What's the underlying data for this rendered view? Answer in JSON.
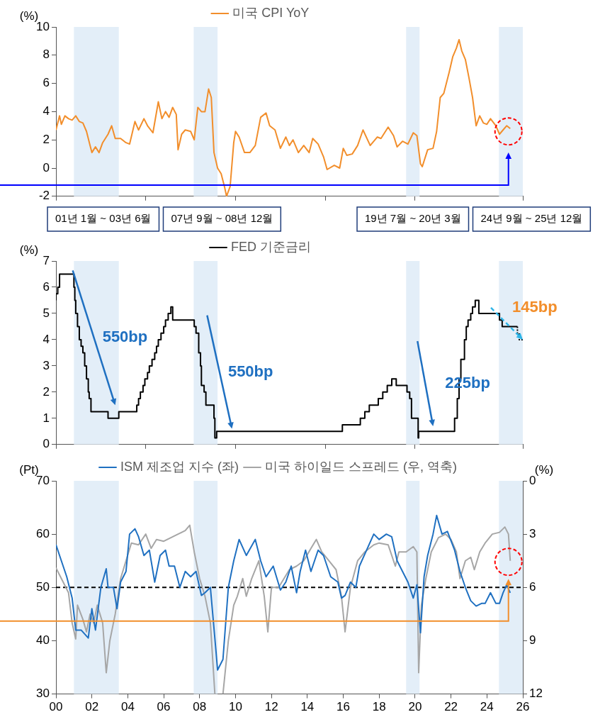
{
  "chart_data": [
    {
      "type": "line",
      "ylabel": "(%)",
      "legend": "top",
      "tick_labels": "y",
      "xlim": [
        2000,
        2026
      ],
      "ylim": [
        -2,
        10
      ],
      "yticks": [
        -2,
        0,
        2,
        4,
        6,
        8,
        10
      ],
      "series": [
        {
          "name": "미국 CPI YoY",
          "color": "#f28e2b",
          "x": [
            2000.0,
            2000.1,
            2000.2,
            2000.3,
            2000.5,
            2000.7,
            2000.9,
            2001.1,
            2001.3,
            2001.5,
            2001.7,
            2001.9,
            2002.0,
            2002.2,
            2002.4,
            2002.6,
            2002.9,
            2003.1,
            2003.3,
            2003.6,
            2003.9,
            2004.1,
            2004.4,
            2004.6,
            2004.9,
            2005.1,
            2005.4,
            2005.7,
            2005.9,
            2006.1,
            2006.3,
            2006.5,
            2006.7,
            2006.8,
            2007.0,
            2007.2,
            2007.5,
            2007.7,
            2007.9,
            2008.1,
            2008.3,
            2008.5,
            2008.65,
            2008.8,
            2009.0,
            2009.2,
            2009.4,
            2009.5,
            2009.7,
            2009.9,
            2010.0,
            2010.2,
            2010.5,
            2010.8,
            2011.1,
            2011.4,
            2011.7,
            2011.9,
            2012.2,
            2012.5,
            2012.8,
            2013.0,
            2013.2,
            2013.5,
            2013.8,
            2014.1,
            2014.3,
            2014.6,
            2014.9,
            2015.1,
            2015.5,
            2015.8,
            2016.0,
            2016.2,
            2016.5,
            2016.8,
            2017.1,
            2017.5,
            2017.9,
            2018.1,
            2018.5,
            2018.8,
            2019.0,
            2019.3,
            2019.6,
            2019.9,
            2020.1,
            2020.3,
            2020.4,
            2020.7,
            2021.0,
            2021.2,
            2021.4,
            2021.6,
            2021.9,
            2022.1,
            2022.3,
            2022.45,
            2022.6,
            2022.8,
            2023.0,
            2023.2,
            2023.4,
            2023.6,
            2023.8,
            2024.0,
            2024.2,
            2024.5,
            2024.7,
            2024.9,
            2025.1,
            2025.3
          ],
          "values": [
            2.7,
            3.2,
            3.7,
            3.1,
            3.7,
            3.5,
            3.4,
            3.7,
            3.3,
            3.2,
            2.6,
            1.6,
            1.1,
            1.5,
            1.1,
            1.8,
            2.4,
            3.0,
            2.1,
            2.1,
            1.8,
            1.7,
            3.3,
            2.7,
            3.5,
            3.0,
            2.5,
            4.7,
            3.5,
            4.0,
            3.6,
            4.3,
            3.8,
            1.3,
            2.4,
            2.7,
            2.6,
            2.0,
            4.3,
            4.0,
            4.0,
            5.6,
            5.0,
            1.1,
            0.0,
            -0.4,
            -1.4,
            -2.0,
            -1.3,
            1.8,
            2.6,
            2.2,
            1.1,
            1.1,
            1.6,
            3.6,
            3.9,
            3.0,
            2.7,
            1.4,
            2.2,
            1.6,
            2.0,
            1.1,
            1.6,
            1.1,
            2.1,
            1.7,
            0.8,
            -0.1,
            0.2,
            0.0,
            1.4,
            0.9,
            1.0,
            1.6,
            2.7,
            1.6,
            2.2,
            2.1,
            2.9,
            2.3,
            1.5,
            1.9,
            1.7,
            2.5,
            2.3,
            0.3,
            0.1,
            1.3,
            1.4,
            2.6,
            5.0,
            5.3,
            6.8,
            7.9,
            8.5,
            9.1,
            8.3,
            7.7,
            6.4,
            5.0,
            3.0,
            3.7,
            3.2,
            3.1,
            3.5,
            3.0,
            2.4,
            2.7,
            3.0,
            2.8
          ]
        }
      ],
      "bands": [
        {
          "axis": "x",
          "from": 2001.0,
          "to": 2003.5,
          "color": "#e3eef8"
        },
        {
          "axis": "x",
          "from": 2007.67,
          "to": 2009.0,
          "color": "#e3eef8"
        },
        {
          "axis": "x",
          "from": 2019.5,
          "to": 2020.25,
          "color": "#e3eef8"
        },
        {
          "axis": "x",
          "from": 2024.67,
          "to": 2026.0,
          "color": "#e3eef8"
        }
      ]
    },
    {
      "type": "step",
      "ylabel": "(%)",
      "legend": "top",
      "tick_labels": "y",
      "xlim": [
        2000,
        2026
      ],
      "ylim": [
        0,
        7
      ],
      "yticks": [
        0,
        1,
        2,
        3,
        4,
        5,
        6,
        7
      ],
      "series": [
        {
          "name": "FED 기준금리",
          "color": "#000000",
          "x": [
            2000.0,
            2000.1,
            2000.2,
            2000.4,
            2001.0,
            2001.05,
            2001.1,
            2001.2,
            2001.3,
            2001.4,
            2001.5,
            2001.6,
            2001.7,
            2001.8,
            2001.85,
            2001.95,
            2002.9,
            2003.5,
            2004.5,
            2004.6,
            2004.7,
            2004.85,
            2004.95,
            2005.1,
            2005.2,
            2005.35,
            2005.5,
            2005.6,
            2005.7,
            2005.85,
            2006.0,
            2006.1,
            2006.25,
            2006.4,
            2006.5,
            2007.7,
            2007.8,
            2007.95,
            2008.05,
            2008.1,
            2008.25,
            2008.35,
            2008.8,
            2008.85,
            2008.95,
            2015.95,
            2016.95,
            2017.2,
            2017.45,
            2017.95,
            2018.2,
            2018.45,
            2018.7,
            2018.95,
            2019.55,
            2019.7,
            2019.8,
            2020.17,
            2020.2,
            2022.2,
            2022.35,
            2022.45,
            2022.55,
            2022.75,
            2022.85,
            2022.95,
            2023.1,
            2023.2,
            2023.35,
            2023.55,
            2024.7,
            2024.85,
            2024.95,
            2025.7
          ],
          "values": [
            5.5,
            5.75,
            6.0,
            6.5,
            6.5,
            6.0,
            5.5,
            5.0,
            4.5,
            4.0,
            3.75,
            3.5,
            3.0,
            2.5,
            2.0,
            1.75,
            1.25,
            1.0,
            1.25,
            1.5,
            1.75,
            2.0,
            2.25,
            2.5,
            2.75,
            3.0,
            3.25,
            3.5,
            3.75,
            4.0,
            4.25,
            4.5,
            4.75,
            5.0,
            5.25,
            4.75,
            4.5,
            4.25,
            3.5,
            3.0,
            2.25,
            2.0,
            1.5,
            1.0,
            0.25,
            0.5,
            0.75,
            1.0,
            1.25,
            1.5,
            1.75,
            2.0,
            2.25,
            2.5,
            2.25,
            2.0,
            1.75,
            1.0,
            0.25,
            0.5,
            1.0,
            1.75,
            2.5,
            3.25,
            4.0,
            4.5,
            4.75,
            5.0,
            5.25,
            5.5,
            5.0,
            4.75,
            4.5,
            4.5
          ]
        },
        {
          "color": "#000000",
          "line_style": "dotted",
          "x": [
            2025.7,
            2025.8,
            2025.95,
            2026.0
          ],
          "values": [
            4.5,
            4.25,
            4.0,
            4.0
          ]
        }
      ],
      "bands": [
        {
          "axis": "x",
          "from": 2001.0,
          "to": 2003.5,
          "color": "#e3eef8"
        },
        {
          "axis": "x",
          "from": 2007.67,
          "to": 2009.0,
          "color": "#e3eef8"
        },
        {
          "axis": "x",
          "from": 2019.5,
          "to": 2020.25,
          "color": "#e3eef8"
        },
        {
          "axis": "x",
          "from": 2024.67,
          "to": 2026.0,
          "color": "#e3eef8"
        }
      ],
      "annotations": [
        "01년 1월 ~ 03년 6월",
        "07년 9월 ~ 08년 12월",
        "19년 7월 ~ 20년 3월",
        "24년 9월 ~ 25년 12월",
        "550bp",
        "550bp",
        "225bp",
        "145bp"
      ]
    },
    {
      "type": "line",
      "ylabel": "(Pt)",
      "y2label": "(%)",
      "legend": "top",
      "xlim": [
        2000,
        2026
      ],
      "xticks": [
        {
          "value": 2000,
          "label": "00"
        },
        {
          "value": 2002,
          "label": "02"
        },
        {
          "value": 2004,
          "label": "04"
        },
        {
          "value": 2006,
          "label": "06"
        },
        {
          "value": 2008,
          "label": "08"
        },
        {
          "value": 2010,
          "label": "10"
        },
        {
          "value": 2012,
          "label": "12"
        },
        {
          "value": 2014,
          "label": "14"
        },
        {
          "value": 2016,
          "label": "16"
        },
        {
          "value": 2018,
          "label": "18"
        },
        {
          "value": 2020,
          "label": "20"
        },
        {
          "value": 2022,
          "label": "22"
        },
        {
          "value": 2024,
          "label": "24"
        },
        {
          "value": 2026,
          "label": "26"
        }
      ],
      "ylim": [
        30,
        70
      ],
      "yticks": [
        30,
        40,
        50,
        60,
        70
      ],
      "y2lim": [
        12,
        0
      ],
      "y2ticks": [
        0,
        3,
        6,
        9,
        12
      ],
      "series": [
        {
          "name": "ISM 제조업 지수 (좌)",
          "color": "#1f70c1",
          "x": [
            2000.0,
            2000.3,
            2000.6,
            2000.9,
            2001.1,
            2001.4,
            2001.8,
            2002.0,
            2002.2,
            2002.5,
            2002.8,
            2002.9,
            2003.2,
            2003.4,
            2003.6,
            2003.9,
            2004.1,
            2004.4,
            2004.6,
            2004.9,
            2005.2,
            2005.5,
            2005.8,
            2006.1,
            2006.3,
            2006.6,
            2006.9,
            2007.2,
            2007.5,
            2007.8,
            2008.1,
            2008.3,
            2008.6,
            2008.9,
            2009.0,
            2009.3,
            2009.6,
            2009.9,
            2010.2,
            2010.6,
            2011.1,
            2011.4,
            2011.7,
            2012.1,
            2012.5,
            2012.8,
            2013.1,
            2013.4,
            2013.6,
            2013.9,
            2014.2,
            2014.6,
            2014.9,
            2015.3,
            2015.7,
            2015.9,
            2016.1,
            2016.4,
            2016.7,
            2016.9,
            2017.3,
            2017.7,
            2018.0,
            2018.4,
            2018.7,
            2019.0,
            2019.3,
            2019.6,
            2019.9,
            2020.1,
            2020.3,
            2020.5,
            2020.7,
            2021.0,
            2021.2,
            2021.5,
            2021.8,
            2022.2,
            2022.5,
            2022.8,
            2023.1,
            2023.4,
            2023.7,
            2023.9,
            2024.2,
            2024.5,
            2024.7,
            2024.9,
            2025.1,
            2025.3
          ],
          "values": [
            58,
            55,
            52,
            48,
            42,
            42,
            40.5,
            46,
            42,
            50,
            53.5,
            50,
            50,
            46,
            51,
            53,
            60,
            61,
            59.5,
            56,
            57,
            51,
            56,
            57,
            54,
            54,
            50,
            53,
            52,
            53,
            48.5,
            49,
            50,
            38.5,
            34.5,
            36.5,
            50,
            55,
            59,
            56,
            59,
            55,
            52,
            54,
            49.5,
            51,
            54,
            49,
            53,
            57,
            53,
            57,
            56,
            52,
            51,
            48,
            48.5,
            51,
            50,
            54,
            57,
            60,
            59,
            60,
            59.5,
            55,
            53,
            51,
            48,
            50.5,
            41.5,
            52,
            56,
            60,
            63.5,
            60,
            60.5,
            57,
            53,
            50,
            47.5,
            46.5,
            47,
            47,
            49,
            47,
            47,
            49,
            50.5,
            49
          ]
        },
        {
          "name": "미국 하이일드 스프레드 (우, 역축)",
          "color": "#a6a6a6",
          "axis": "y2",
          "x": [
            2000.0,
            2000.3,
            2000.7,
            2000.9,
            2001.1,
            2001.2,
            2001.5,
            2001.7,
            2001.9,
            2002.1,
            2002.3,
            2002.6,
            2002.8,
            2003.0,
            2003.3,
            2003.6,
            2003.9,
            2004.2,
            2004.6,
            2005.0,
            2005.3,
            2005.6,
            2006.0,
            2006.4,
            2006.8,
            2007.2,
            2007.45,
            2007.7,
            2008.0,
            2008.3,
            2008.6,
            2008.85,
            2009.0,
            2009.3,
            2009.6,
            2009.9,
            2010.1,
            2010.4,
            2010.6,
            2010.9,
            2011.3,
            2011.6,
            2011.8,
            2012.0,
            2012.4,
            2012.7,
            2013.0,
            2013.4,
            2013.8,
            2014.2,
            2014.5,
            2014.8,
            2015.2,
            2015.6,
            2015.9,
            2016.1,
            2016.4,
            2016.8,
            2017.2,
            2017.7,
            2018.0,
            2018.5,
            2018.9,
            2019.1,
            2019.5,
            2019.9,
            2020.1,
            2020.2,
            2020.35,
            2020.6,
            2020.9,
            2021.3,
            2021.7,
            2022.0,
            2022.3,
            2022.5,
            2022.8,
            2023.1,
            2023.3,
            2023.6,
            2023.9,
            2024.3,
            2024.7,
            2025.0,
            2025.2,
            2025.3
          ],
          "values": [
            4.9,
            5.5,
            6.3,
            8.0,
            8.9,
            7.0,
            7.8,
            8.5,
            7.5,
            8.0,
            7.0,
            8.0,
            10.8,
            9.0,
            7.5,
            5.5,
            4.5,
            3.5,
            3.6,
            3.0,
            3.8,
            3.3,
            3.4,
            3.2,
            3.0,
            2.8,
            2.5,
            4.0,
            5.5,
            6.5,
            8.0,
            12,
            null,
            12,
            9.0,
            7.0,
            6.5,
            5.5,
            6.5,
            5.5,
            4.5,
            6.5,
            8.5,
            6.0,
            6.0,
            5.5,
            5.0,
            4.8,
            4.5,
            3.8,
            3.3,
            4.0,
            4.5,
            5.0,
            6.5,
            8.5,
            6.0,
            4.5,
            4.0,
            3.6,
            3.5,
            3.6,
            4.8,
            4.0,
            4.0,
            3.7,
            4.0,
            10.8,
            7.0,
            5.5,
            4.0,
            3.2,
            3.0,
            3.3,
            4.0,
            5.5,
            4.5,
            4.3,
            5.0,
            4.0,
            3.5,
            3.0,
            2.9,
            2.6,
            3.0,
            4.5
          ]
        }
      ],
      "ref_lines": [
        {
          "axis": "y",
          "value": 50,
          "color": "#000000",
          "line_style": "dashed"
        }
      ],
      "bands": [
        {
          "axis": "x",
          "from": 2001.0,
          "to": 2003.5,
          "color": "#e3eef8"
        },
        {
          "axis": "x",
          "from": 2007.67,
          "to": 2009.0,
          "color": "#e3eef8"
        },
        {
          "axis": "x",
          "from": 2019.5,
          "to": 2020.25,
          "color": "#e3eef8"
        },
        {
          "axis": "x",
          "from": 2024.67,
          "to": 2026.0,
          "color": "#e3eef8"
        }
      ]
    }
  ]
}
